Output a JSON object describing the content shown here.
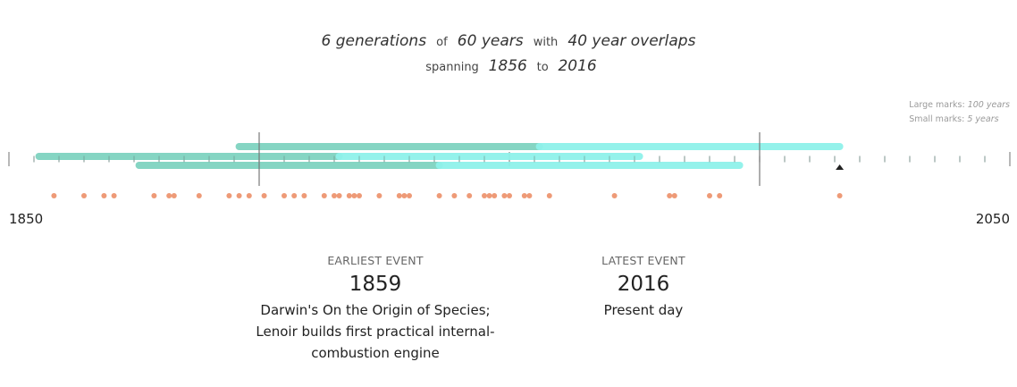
{
  "header": {
    "generations_value": "6 generations",
    "of_word": "of",
    "years_value": "60 years",
    "with_word": "with",
    "overlap_value": "40 year overlaps",
    "spanning_word": "spanning",
    "start_year": "1856",
    "to_word": "to",
    "end_year": "2016"
  },
  "legend": {
    "large_label": "Large marks:",
    "large_value": "100 years",
    "small_label": "Small marks:",
    "small_value": "5 years"
  },
  "chart_data": {
    "type": "timeline",
    "x_range": [
      1850,
      2050
    ],
    "x_start_label": "1850",
    "x_end_label": "2050",
    "major_tick_every_years": 100,
    "minor_tick_every_years": 5,
    "generations": [
      {
        "start": 1856,
        "end": 1916,
        "row": 1
      },
      {
        "start": 1876,
        "end": 1936,
        "row": 2
      },
      {
        "start": 1896,
        "end": 1956,
        "row": 0
      },
      {
        "start": 1916,
        "end": 1976,
        "row": 1
      },
      {
        "start": 1936,
        "end": 1996,
        "row": 2
      },
      {
        "start": 1956,
        "end": 2016,
        "row": 0
      }
    ],
    "boundary_lines": [
      1900,
      2000
    ],
    "present_marker": 2016,
    "events": [
      1859,
      1865,
      1869,
      1871,
      1879,
      1882,
      1883,
      1888,
      1894,
      1896,
      1898,
      1901,
      1905,
      1907,
      1909,
      1913,
      1915,
      1916,
      1918,
      1919,
      1920,
      1924,
      1928,
      1929,
      1930,
      1936,
      1939,
      1942,
      1945,
      1946,
      1947,
      1949,
      1950,
      1953,
      1954,
      1958,
      1971,
      1982,
      1983,
      1990,
      1992,
      2016
    ],
    "colors": {
      "generation_dark": "#7fd3c0",
      "generation_light": "#8ff2ea",
      "event_dot": "#ee9a77",
      "axis": "#c9c9c9",
      "boundary": "#777777"
    }
  },
  "earliest": {
    "heading": "EARLIEST EVENT",
    "year": "1859",
    "lines": [
      "Darwin's On the Origin of Species;",
      "Lenoir builds first practical internal-",
      "combustion engine"
    ]
  },
  "latest": {
    "heading": "LATEST EVENT",
    "year": "2016",
    "lines": [
      "Present day"
    ]
  }
}
